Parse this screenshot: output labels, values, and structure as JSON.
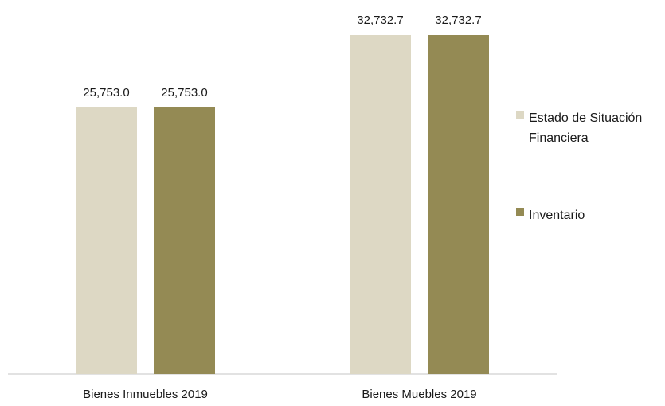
{
  "chart_data": {
    "type": "bar",
    "title": "",
    "xlabel": "",
    "ylabel": "",
    "categories": [
      "Bienes Inmuebles 2019",
      "Bienes Muebles 2019"
    ],
    "series": [
      {
        "name": "Estado de Situación Financiera",
        "values": [
          25753.0,
          32732.7
        ],
        "labels": [
          "25,753.0",
          "32,732.7"
        ],
        "color": "#ddd8c4"
      },
      {
        "name": "Inventario",
        "values": [
          25753.0,
          32732.7
        ],
        "labels": [
          "25,753.0",
          "32,732.7"
        ],
        "color": "#948a54"
      }
    ],
    "ylim": [
      0,
      32732.7
    ],
    "grid": false,
    "y_axis_visible": false,
    "legend_position": "right",
    "legend": [
      {
        "lines": [
          "Estado de Situación",
          "Financiera"
        ],
        "color": "#ddd8c4"
      },
      {
        "lines": [
          "Inventario"
        ],
        "color": "#948a54"
      }
    ],
    "axis_color": "#d9d9d9"
  }
}
